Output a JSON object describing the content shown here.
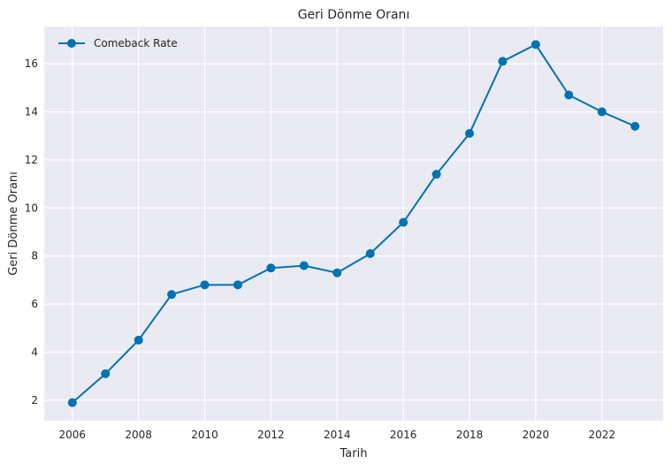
{
  "chart_data": {
    "type": "line",
    "title": "Geri Dönme Oranı",
    "xlabel": "Tarih",
    "ylabel": "Geri Dönme Oranı",
    "x": [
      2006,
      2007,
      2008,
      2009,
      2010,
      2011,
      2012,
      2013,
      2014,
      2015,
      2016,
      2017,
      2018,
      2019,
      2020,
      2021,
      2022,
      2023
    ],
    "series": [
      {
        "name": "Comeback Rate",
        "values": [
          1.9,
          3.1,
          4.5,
          6.4,
          6.8,
          6.8,
          7.5,
          7.6,
          7.3,
          8.1,
          9.4,
          11.4,
          13.1,
          16.1,
          16.8,
          14.7,
          14.0,
          13.4
        ],
        "color": "#0072b2"
      }
    ],
    "xlim": [
      2005.15,
      2023.85
    ],
    "ylim": [
      1.15,
      17.55
    ],
    "xticks": [
      "2006",
      "2008",
      "2010",
      "2012",
      "2014",
      "2016",
      "2018",
      "2020",
      "2022"
    ],
    "yticks": [
      "2",
      "4",
      "6",
      "8",
      "10",
      "12",
      "14",
      "16"
    ],
    "grid": true,
    "legend_position": "top-left",
    "background": "#eaeaf2",
    "gridColor": "#ffffff"
  }
}
